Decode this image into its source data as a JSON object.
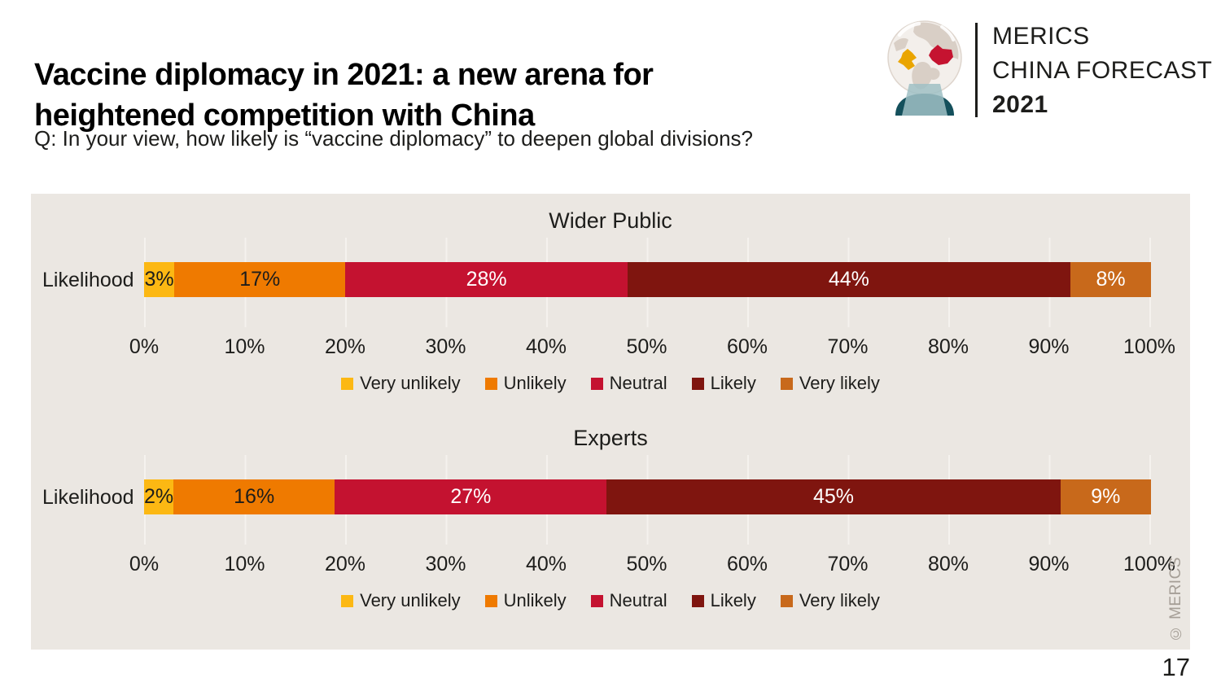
{
  "header": {
    "title": {
      "line1": "Vaccine diplomacy in 2021: a new arena for",
      "line2": "heightened competition with China"
    },
    "subtitle": "Q: In your view, how likely is “vaccine diplomacy” to deepen global divisions?",
    "logo": {
      "line1": "MERICS",
      "line2": "CHINA FORECAST",
      "line3": "2021"
    }
  },
  "chart_data": {
    "type": "bar",
    "stacking": "horizontal-100pct-stacked",
    "grid": true,
    "legend_position": "bottom",
    "row_label": "Likelihood",
    "categories": [
      "Very unlikely",
      "Unlikely",
      "Neutral",
      "Likely",
      "Very likely"
    ],
    "colors": [
      "#fcb813",
      "#ef7a00",
      "#c41230",
      "#7f150f",
      "#c8691b"
    ],
    "label_colors": [
      "#1d1d1b",
      "#1d1d1b",
      "#ffffff",
      "#ffffff",
      "#ffffff"
    ],
    "axis_ticks": [
      "0%",
      "10%",
      "20%",
      "30%",
      "40%",
      "50%",
      "60%",
      "70%",
      "80%",
      "90%",
      "100%"
    ],
    "xlim": [
      0,
      100
    ],
    "groups": [
      {
        "title": "Wider Public",
        "values": [
          3,
          17,
          28,
          44,
          8
        ],
        "labels": [
          "3%",
          "17%",
          "28%",
          "44%",
          "8%"
        ]
      },
      {
        "title": "Experts",
        "values": [
          2,
          16,
          27,
          45,
          9
        ],
        "labels": [
          "2%",
          "16%",
          "27%",
          "45%",
          "9%"
        ]
      }
    ],
    "panel_background": "#ebe7e2"
  },
  "footer": {
    "copyright": "© MERICS",
    "page_number": "17"
  }
}
